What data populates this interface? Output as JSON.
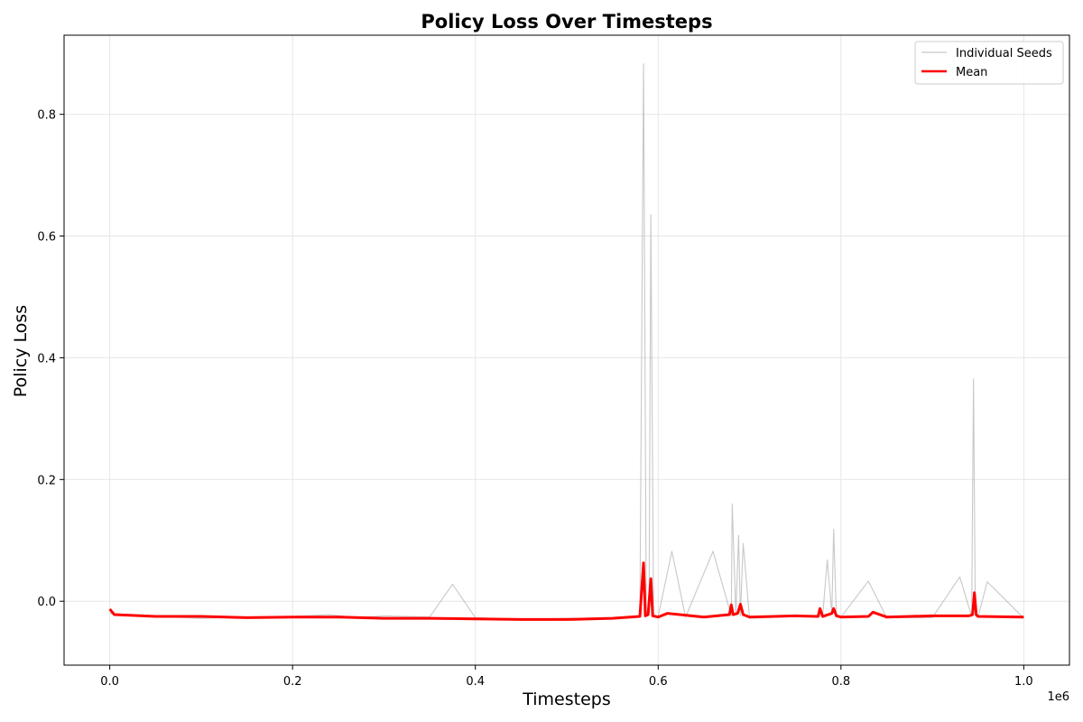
{
  "chart_data": {
    "type": "line",
    "title": "Policy Loss Over Timesteps",
    "xlabel": "Timesteps",
    "ylabel": "Policy Loss",
    "x_offset_label": "1e6",
    "xlim": [
      -0.05,
      1.05
    ],
    "ylim": [
      -0.105,
      0.93
    ],
    "x_unit_note": "x tick values shown in units of 1e6 timesteps",
    "xticks": [
      0.0,
      0.2,
      0.4,
      0.6,
      0.8,
      1.0
    ],
    "xtick_labels": [
      "0.0",
      "0.2",
      "0.4",
      "0.6",
      "0.8",
      "1.0"
    ],
    "yticks": [
      0.0,
      0.2,
      0.4,
      0.6,
      0.8
    ],
    "ytick_labels": [
      "0.0",
      "0.2",
      "0.4",
      "0.6",
      "0.8"
    ],
    "grid": true,
    "legend": {
      "placement": "top-right",
      "entries": [
        {
          "label": "Individual Seeds",
          "color": "#bbbbbb"
        },
        {
          "label": "Mean",
          "color": "#ff0000"
        }
      ]
    },
    "series": [
      {
        "name": "Individual Seeds",
        "color": "#9a9a9a",
        "x": [
          0.0,
          0.05,
          0.1,
          0.15,
          0.2,
          0.24,
          0.27,
          0.3,
          0.35,
          0.375,
          0.4,
          0.45,
          0.5,
          0.55,
          0.58,
          0.584,
          0.587,
          0.59,
          0.592,
          0.595,
          0.6,
          0.615,
          0.63,
          0.66,
          0.68,
          0.681,
          0.685,
          0.688,
          0.69,
          0.693,
          0.7,
          0.75,
          0.78,
          0.785,
          0.79,
          0.792,
          0.795,
          0.8,
          0.83,
          0.85,
          0.9,
          0.93,
          0.943,
          0.945,
          0.947,
          0.95,
          0.96,
          1.0
        ],
        "y": [
          -0.02,
          -0.025,
          -0.028,
          -0.026,
          -0.025,
          -0.022,
          -0.027,
          -0.024,
          -0.026,
          0.028,
          -0.027,
          -0.03,
          -0.028,
          -0.028,
          -0.024,
          0.883,
          -0.022,
          -0.02,
          0.635,
          -0.024,
          -0.025,
          0.082,
          -0.026,
          0.082,
          -0.024,
          0.16,
          -0.022,
          0.108,
          -0.024,
          0.095,
          -0.028,
          -0.025,
          -0.024,
          0.068,
          -0.02,
          0.118,
          -0.024,
          -0.026,
          0.033,
          -0.027,
          -0.027,
          0.04,
          -0.025,
          0.365,
          -0.024,
          -0.026,
          0.032,
          -0.028
        ]
      },
      {
        "name": "Mean",
        "color": "#ff0000",
        "x": [
          0.0,
          0.005,
          0.05,
          0.1,
          0.15,
          0.2,
          0.25,
          0.3,
          0.35,
          0.4,
          0.45,
          0.5,
          0.55,
          0.58,
          0.584,
          0.586,
          0.589,
          0.592,
          0.594,
          0.6,
          0.61,
          0.65,
          0.678,
          0.68,
          0.682,
          0.687,
          0.69,
          0.693,
          0.7,
          0.75,
          0.775,
          0.777,
          0.78,
          0.79,
          0.792,
          0.795,
          0.8,
          0.83,
          0.835,
          0.85,
          0.9,
          0.94,
          0.944,
          0.946,
          0.948,
          0.95,
          1.0
        ],
        "y": [
          -0.013,
          -0.022,
          -0.025,
          -0.025,
          -0.027,
          -0.026,
          -0.026,
          -0.028,
          -0.028,
          -0.029,
          -0.03,
          -0.03,
          -0.028,
          -0.025,
          0.063,
          -0.024,
          -0.022,
          0.037,
          -0.024,
          -0.026,
          -0.02,
          -0.026,
          -0.022,
          -0.006,
          -0.022,
          -0.02,
          -0.005,
          -0.022,
          -0.026,
          -0.024,
          -0.025,
          -0.012,
          -0.025,
          -0.02,
          -0.012,
          -0.024,
          -0.026,
          -0.025,
          -0.018,
          -0.026,
          -0.024,
          -0.024,
          -0.022,
          0.014,
          -0.022,
          -0.025,
          -0.026
        ]
      }
    ]
  }
}
